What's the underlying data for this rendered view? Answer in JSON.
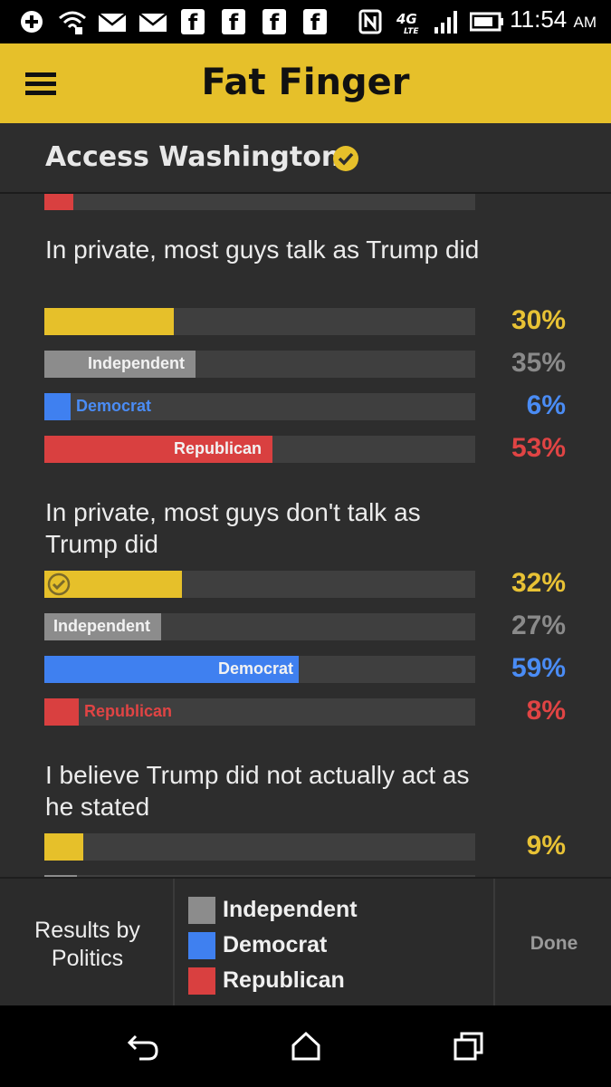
{
  "status_bar": {
    "time": "11:54",
    "ampm": "AM",
    "network": "4G LTE",
    "icons": [
      "add-icon",
      "wifi-icon",
      "mail-icon",
      "mail-icon",
      "facebook-icon",
      "facebook-icon",
      "facebook-icon",
      "facebook-icon",
      "nfc-icon",
      "signal-icon",
      "battery-icon"
    ]
  },
  "app_bar": {
    "title": "Fat Finger"
  },
  "sub_header": {
    "title": "Access Washington"
  },
  "colors": {
    "all": "#e6c02a",
    "independent": "#8c8c8c",
    "democrat": "#3f80f0",
    "republican": "#d94040",
    "pct_all": "#e8c235",
    "pct_independent": "#8a8a8a",
    "pct_democrat": "#4a8cf5",
    "pct_republican": "#e04444"
  },
  "results": [
    {
      "question": "In private, most guys talk as Trump did",
      "bars": [
        {
          "key": "all",
          "label": "",
          "value": 30,
          "pct": "30%",
          "checked": false
        },
        {
          "key": "independent",
          "label": "Independent",
          "value": 35,
          "pct": "35%"
        },
        {
          "key": "democrat",
          "label": "Democrat",
          "value": 6,
          "pct": "6%"
        },
        {
          "key": "republican",
          "label": "Republican",
          "value": 53,
          "pct": "53%"
        }
      ]
    },
    {
      "question": "In private, most guys don't talk as Trump did",
      "bars": [
        {
          "key": "all",
          "label": "",
          "value": 32,
          "pct": "32%",
          "checked": true
        },
        {
          "key": "independent",
          "label": "Independent",
          "value": 27,
          "pct": "27%"
        },
        {
          "key": "democrat",
          "label": "Democrat",
          "value": 59,
          "pct": "59%"
        },
        {
          "key": "republican",
          "label": "Republican",
          "value": 8,
          "pct": "8%"
        }
      ]
    },
    {
      "question": "I believe Trump did not actually act as he stated",
      "bars": [
        {
          "key": "all",
          "label": "",
          "value": 9,
          "pct": "9%",
          "checked": false
        }
      ]
    }
  ],
  "bottom": {
    "left_label_line1": "Results by",
    "left_label_line2": "Politics",
    "legend": [
      {
        "key": "independent",
        "label": "Independent"
      },
      {
        "key": "democrat",
        "label": "Democrat"
      },
      {
        "key": "republican",
        "label": "Republican"
      }
    ],
    "done_label": "Done"
  },
  "nav_bar": {
    "buttons": [
      "back-icon",
      "home-icon",
      "recents-icon"
    ]
  }
}
